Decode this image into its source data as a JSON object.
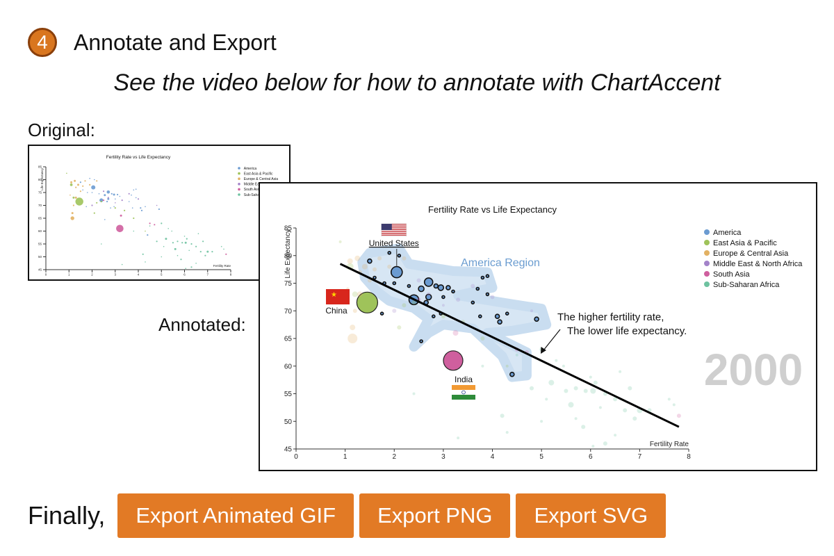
{
  "step": {
    "number": "4",
    "title": "Annotate and Export"
  },
  "subtitle": "See the video below for how to annotate with ChartAccent",
  "labels": {
    "original": "Original:",
    "annotated": "Annotated:"
  },
  "footer": {
    "prefix": "Finally,",
    "buttons": [
      "Export Animated GIF",
      "Export PNG",
      "Export SVG"
    ],
    "button_color": "#e27a25"
  },
  "chart_data": [
    {
      "type": "scatter",
      "title": "Fertility Rate vs Life Expectancy",
      "xlabel": "Fertility Rate",
      "ylabel": "Life Expectancy",
      "xlim": [
        0,
        8
      ],
      "ylim": [
        45,
        85
      ],
      "xticks": [
        0,
        1,
        2,
        3,
        4,
        5,
        6,
        7,
        8
      ],
      "yticks": [
        45,
        50,
        55,
        60,
        65,
        70,
        75,
        80,
        85
      ],
      "legend_position": "top-right",
      "legend": [
        {
          "name": "America",
          "color": "#6b9bd1"
        },
        {
          "name": "East Asia & Pacific",
          "color": "#9fc35a"
        },
        {
          "name": "Europe & Central Asia",
          "color": "#e2b163"
        },
        {
          "name": "Middle East & North Africa",
          "color": "#a383c9"
        },
        {
          "name": "South Asia",
          "color": "#cf5f9e"
        },
        {
          "name": "Sub-Saharan Africa",
          "color": "#6ec2a0"
        }
      ],
      "points": [
        {
          "x": 1.5,
          "y": 79,
          "r": 3,
          "g": 0
        },
        {
          "x": 1.9,
          "y": 80.5,
          "r": 2,
          "g": 0
        },
        {
          "x": 2.05,
          "y": 77,
          "r": 8,
          "g": 0
        },
        {
          "x": 2.1,
          "y": 80,
          "r": 2,
          "g": 0
        },
        {
          "x": 1.6,
          "y": 76,
          "r": 2,
          "g": 0
        },
        {
          "x": 1.8,
          "y": 75,
          "r": 2,
          "g": 0
        },
        {
          "x": 2.0,
          "y": 75,
          "r": 2,
          "g": 0
        },
        {
          "x": 2.3,
          "y": 74.5,
          "r": 2,
          "g": 0
        },
        {
          "x": 2.7,
          "y": 75.2,
          "r": 6,
          "g": 0
        },
        {
          "x": 2.55,
          "y": 74,
          "r": 4,
          "g": 0
        },
        {
          "x": 2.85,
          "y": 74.5,
          "r": 3,
          "g": 0
        },
        {
          "x": 2.95,
          "y": 74.2,
          "r": 4,
          "g": 0
        },
        {
          "x": 3.1,
          "y": 74.2,
          "r": 3,
          "g": 0
        },
        {
          "x": 2.7,
          "y": 72.5,
          "r": 4,
          "g": 0
        },
        {
          "x": 2.4,
          "y": 72,
          "r": 7,
          "g": 0
        },
        {
          "x": 2.65,
          "y": 71.5,
          "r": 3,
          "g": 0
        },
        {
          "x": 3.0,
          "y": 72.5,
          "r": 2,
          "g": 0
        },
        {
          "x": 3.2,
          "y": 73.5,
          "r": 2,
          "g": 0
        },
        {
          "x": 3.7,
          "y": 74,
          "r": 2,
          "g": 0
        },
        {
          "x": 3.9,
          "y": 73,
          "r": 2,
          "g": 0
        },
        {
          "x": 3.6,
          "y": 71.5,
          "r": 2,
          "g": 0
        },
        {
          "x": 3.75,
          "y": 69,
          "r": 2,
          "g": 0
        },
        {
          "x": 4.1,
          "y": 69,
          "r": 3,
          "g": 0
        },
        {
          "x": 4.15,
          "y": 68,
          "r": 3,
          "g": 0
        },
        {
          "x": 4.3,
          "y": 69.5,
          "r": 2,
          "g": 0
        },
        {
          "x": 4.9,
          "y": 68.5,
          "r": 3,
          "g": 0
        },
        {
          "x": 2.95,
          "y": 69.5,
          "r": 2,
          "g": 0
        },
        {
          "x": 3.8,
          "y": 76,
          "r": 2,
          "g": 0
        },
        {
          "x": 3.9,
          "y": 76.3,
          "r": 2,
          "g": 0
        },
        {
          "x": 1.75,
          "y": 69.5,
          "r": 2,
          "g": 0
        },
        {
          "x": 2.8,
          "y": 69,
          "r": 2,
          "g": 0
        },
        {
          "x": 2.55,
          "y": 64.5,
          "r": 2,
          "g": 0
        },
        {
          "x": 4.4,
          "y": 58.5,
          "r": 3,
          "g": 0
        },
        {
          "x": 1.45,
          "y": 71.5,
          "r": 15,
          "g": 1
        },
        {
          "x": 1.2,
          "y": 73,
          "r": 4,
          "g": 1
        },
        {
          "x": 1.1,
          "y": 78,
          "r": 5,
          "g": 1
        },
        {
          "x": 2.2,
          "y": 71,
          "r": 3,
          "g": 1
        },
        {
          "x": 3.0,
          "y": 69,
          "r": 3,
          "g": 1
        },
        {
          "x": 3.4,
          "y": 68,
          "r": 3,
          "g": 1
        },
        {
          "x": 2.1,
          "y": 67,
          "r": 3,
          "g": 1
        },
        {
          "x": 3.8,
          "y": 65,
          "r": 3,
          "g": 1
        },
        {
          "x": 4.3,
          "y": 60,
          "r": 2,
          "g": 1
        },
        {
          "x": 0.9,
          "y": 82.5,
          "r": 2,
          "g": 1
        },
        {
          "x": 2.4,
          "y": 71.5,
          "r": 3,
          "g": 1
        },
        {
          "x": 1.1,
          "y": 79,
          "r": 4,
          "g": 2
        },
        {
          "x": 1.25,
          "y": 79.5,
          "r": 4,
          "g": 2
        },
        {
          "x": 1.4,
          "y": 78,
          "r": 4,
          "g": 2
        },
        {
          "x": 1.3,
          "y": 77,
          "r": 3,
          "g": 2
        },
        {
          "x": 1.6,
          "y": 77.5,
          "r": 3,
          "g": 2
        },
        {
          "x": 1.5,
          "y": 75.5,
          "r": 3,
          "g": 2
        },
        {
          "x": 1.2,
          "y": 70,
          "r": 3,
          "g": 2
        },
        {
          "x": 1.15,
          "y": 67,
          "r": 4,
          "g": 2
        },
        {
          "x": 1.15,
          "y": 65,
          "r": 7,
          "g": 2
        },
        {
          "x": 1.3,
          "y": 73,
          "r": 4,
          "g": 2
        },
        {
          "x": 1.7,
          "y": 79.5,
          "r": 3,
          "g": 2
        },
        {
          "x": 1.9,
          "y": 78,
          "r": 3,
          "g": 2
        },
        {
          "x": 1.05,
          "y": 74,
          "r": 2,
          "g": 2
        },
        {
          "x": 2.2,
          "y": 79.5,
          "r": 3,
          "g": 2
        },
        {
          "x": 2.0,
          "y": 70,
          "r": 3,
          "g": 3
        },
        {
          "x": 2.7,
          "y": 73,
          "r": 3,
          "g": 3
        },
        {
          "x": 3.3,
          "y": 72,
          "r": 3,
          "g": 3
        },
        {
          "x": 3.6,
          "y": 74.5,
          "r": 3,
          "g": 3
        },
        {
          "x": 2.5,
          "y": 75.5,
          "r": 3,
          "g": 3
        },
        {
          "x": 4.0,
          "y": 72.5,
          "r": 3,
          "g": 3
        },
        {
          "x": 4.8,
          "y": 70,
          "r": 2,
          "g": 3
        },
        {
          "x": 3.0,
          "y": 71,
          "r": 2,
          "g": 3
        },
        {
          "x": 3.2,
          "y": 61,
          "r": 14,
          "g": 4
        },
        {
          "x": 2.5,
          "y": 72,
          "r": 3,
          "g": 4
        },
        {
          "x": 4.5,
          "y": 63,
          "r": 3,
          "g": 4
        },
        {
          "x": 3.25,
          "y": 66,
          "r": 4,
          "g": 4
        },
        {
          "x": 4.7,
          "y": 62.5,
          "r": 3,
          "g": 4
        },
        {
          "x": 7.8,
          "y": 51,
          "r": 3,
          "g": 4
        },
        {
          "x": 5.0,
          "y": 63,
          "r": 3,
          "g": 5
        },
        {
          "x": 5.2,
          "y": 57,
          "r": 4,
          "g": 5
        },
        {
          "x": 5.5,
          "y": 55.5,
          "r": 3,
          "g": 5
        },
        {
          "x": 5.6,
          "y": 53,
          "r": 4,
          "g": 5
        },
        {
          "x": 5.7,
          "y": 56,
          "r": 3,
          "g": 5
        },
        {
          "x": 5.9,
          "y": 55.5,
          "r": 3,
          "g": 5
        },
        {
          "x": 6.05,
          "y": 55.5,
          "r": 4,
          "g": 5
        },
        {
          "x": 6.1,
          "y": 57,
          "r": 3,
          "g": 5
        },
        {
          "x": 6.2,
          "y": 52.5,
          "r": 2,
          "g": 5
        },
        {
          "x": 6.3,
          "y": 55,
          "r": 3,
          "g": 5
        },
        {
          "x": 6.5,
          "y": 54,
          "r": 3,
          "g": 5
        },
        {
          "x": 6.7,
          "y": 52,
          "r": 3,
          "g": 5
        },
        {
          "x": 7.0,
          "y": 52,
          "r": 4,
          "g": 5
        },
        {
          "x": 7.2,
          "y": 52,
          "r": 3,
          "g": 5
        },
        {
          "x": 7.7,
          "y": 53,
          "r": 2,
          "g": 5
        },
        {
          "x": 6.9,
          "y": 50.5,
          "r": 3,
          "g": 5
        },
        {
          "x": 7.6,
          "y": 54,
          "r": 2,
          "g": 5
        },
        {
          "x": 6.5,
          "y": 47.5,
          "r": 2,
          "g": 5
        },
        {
          "x": 6.3,
          "y": 46,
          "r": 3,
          "g": 5
        },
        {
          "x": 6.05,
          "y": 45.5,
          "r": 2,
          "g": 5
        },
        {
          "x": 5.85,
          "y": 49,
          "r": 3,
          "g": 5
        },
        {
          "x": 5.7,
          "y": 50.5,
          "r": 2,
          "g": 5
        },
        {
          "x": 4.3,
          "y": 48,
          "r": 2,
          "g": 5
        },
        {
          "x": 4.2,
          "y": 51,
          "r": 3,
          "g": 5
        },
        {
          "x": 5.0,
          "y": 50,
          "r": 2,
          "g": 5
        },
        {
          "x": 5.45,
          "y": 60,
          "r": 2,
          "g": 5
        },
        {
          "x": 6.6,
          "y": 59,
          "r": 2,
          "g": 5
        },
        {
          "x": 5.3,
          "y": 61,
          "r": 2,
          "g": 5
        },
        {
          "x": 3.3,
          "y": 47,
          "r": 2,
          "g": 5
        },
        {
          "x": 2.4,
          "y": 55,
          "r": 2,
          "g": 5
        },
        {
          "x": 4.5,
          "y": 62,
          "r": 2,
          "g": 5
        },
        {
          "x": 3.8,
          "y": 60,
          "r": 2,
          "g": 5
        },
        {
          "x": 6.0,
          "y": 58,
          "r": 2,
          "g": 5
        },
        {
          "x": 6.8,
          "y": 56,
          "r": 3,
          "g": 5
        },
        {
          "x": 5.1,
          "y": 54,
          "r": 2,
          "g": 5
        },
        {
          "x": 4.8,
          "y": 56,
          "r": 3,
          "g": 5
        }
      ]
    },
    {
      "type": "scatter",
      "title": "Fertility Rate vs Life Expectancy",
      "xlabel": "Fertility Rate",
      "ylabel": "Life Expectancy",
      "xlim": [
        0,
        8
      ],
      "ylim": [
        45,
        85
      ],
      "xticks": [
        0,
        1,
        2,
        3,
        4,
        5,
        6,
        7,
        8
      ],
      "yticks": [
        45,
        50,
        55,
        60,
        65,
        70,
        75,
        80,
        85
      ],
      "legend_position": "top-right",
      "annotations": {
        "year": "2000",
        "region_label": "America Region",
        "note_line1": "The higher fertility rate,",
        "note_line2": "The lower life expectancy.",
        "countries": [
          {
            "name": "United States",
            "x": 2.05,
            "y": 77,
            "flag": "us-flag"
          },
          {
            "name": "China",
            "x": 1.45,
            "y": 71.5,
            "flag": "china-flag"
          },
          {
            "name": "India",
            "x": 3.2,
            "y": 61,
            "flag": "india-flag"
          }
        ],
        "trend_line": [
          [
            0.9,
            78.5
          ],
          [
            7.8,
            49
          ]
        ]
      }
    }
  ]
}
